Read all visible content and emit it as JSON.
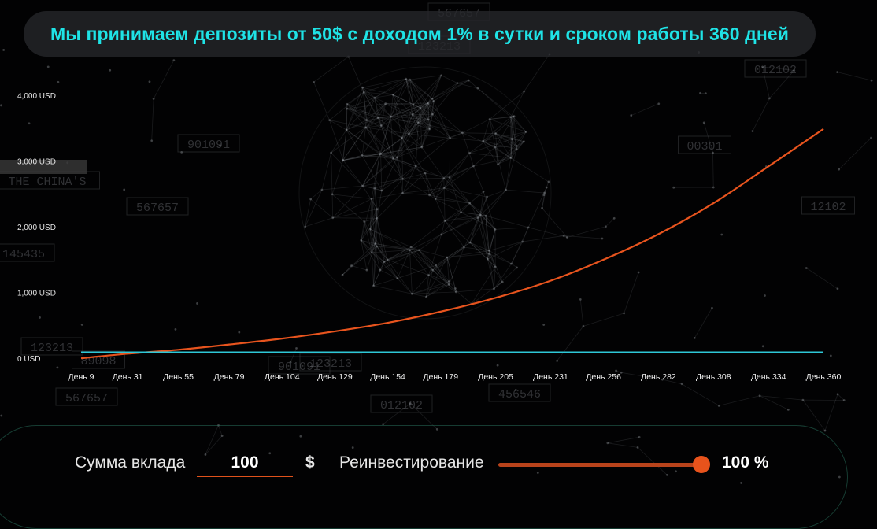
{
  "banner": {
    "text": "Мы принимаем депозиты от 50$ с доходом 1% в сутки и сроком работы 360 дней"
  },
  "background": {
    "code_labels": [
      "567657",
      "123213",
      "901091",
      "567657",
      "145435",
      "123213",
      "89098",
      "12102",
      "012102",
      "00301",
      "456546",
      "012102",
      "123213",
      "901091",
      "567657",
      "THE CHINA'S"
    ]
  },
  "chart_data": {
    "type": "line",
    "x_tick_labels": [
      "День 9",
      "День 31",
      "День 55",
      "День 79",
      "День 104",
      "День 129",
      "День 154",
      "День 179",
      "День 205",
      "День 231",
      "День 256",
      "День 282",
      "День 308",
      "День 334",
      "День 360"
    ],
    "y_tick_labels": [
      "0 USD",
      "1,000 USD",
      "2,000 USD",
      "3,000 USD",
      "4,000 USD"
    ],
    "ylim": [
      0,
      4000
    ],
    "xlim": [
      9,
      360
    ],
    "series": [
      {
        "color": "#e8541e",
        "x": [
          9,
          31,
          55,
          79,
          104,
          129,
          154,
          179,
          205,
          231,
          256,
          282,
          308,
          334,
          360
        ],
        "y": [
          10,
          80,
          140,
          220,
          310,
          420,
          550,
          720,
          930,
          1190,
          1510,
          1900,
          2370,
          2930,
          3500
        ]
      },
      {
        "color": "#2ec7d6",
        "x": [
          9,
          360
        ],
        "y": [
          100,
          100
        ]
      }
    ]
  },
  "controls": {
    "deposit_label": "Сумма вклада",
    "deposit_value": "100",
    "currency": "$",
    "reinvest_label": "Реинвестирование",
    "reinvest_percent": 100,
    "reinvest_value": "100 %"
  }
}
